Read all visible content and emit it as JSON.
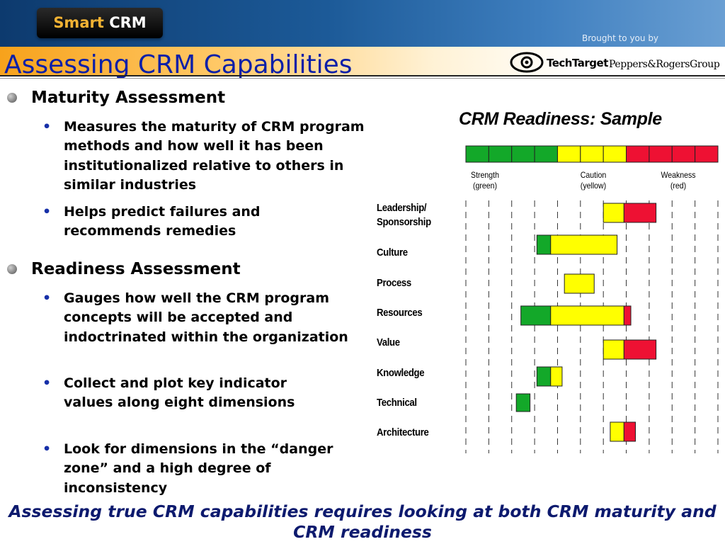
{
  "header": {
    "logo_word1": "Smart",
    "logo_word2": "CRM",
    "brought_to_you_by": "Brought to you by",
    "sponsor1": "TechTarget",
    "sponsor2": "Peppers&RogersGroup"
  },
  "title": "Assessing CRM Capabilities",
  "sections": [
    {
      "heading": "Maturity Assessment",
      "bullets": [
        "Measures the maturity of CRM program methods and how well it has been institutionalized relative to others in similar industries",
        "Helps predict failures and recommends remedies"
      ]
    },
    {
      "heading": "Readiness Assessment",
      "bullets": [
        "Gauges how well the CRM program concepts will be accepted and indoctrinated within the organization",
        "Collect and plot key indicator values along eight dimensions",
        "Look for dimensions in the “danger zone” and a high degree of inconsistency"
      ]
    }
  ],
  "chart_data": {
    "type": "bar",
    "title": "CRM Readiness: Sample",
    "legend": [
      {
        "label": "Strength",
        "sub": "(green)",
        "color": "#13a829"
      },
      {
        "label": "Caution",
        "sub": "(yellow)",
        "color": "#ffff00"
      },
      {
        "label": "Weakness",
        "sub": "(red)",
        "color": "#ee1133"
      }
    ],
    "scale": {
      "green": [
        0,
        4
      ],
      "yellow": [
        4,
        7
      ],
      "red": [
        7,
        11
      ]
    },
    "categories": [
      "Leadership/ Sponsorship",
      "Culture",
      "Process",
      "Resources",
      "Value",
      "Knowledge",
      "Technical",
      "Architecture"
    ],
    "category_lines": [
      [
        "Leadership/",
        "Sponsorship"
      ],
      [
        "Culture"
      ],
      [
        "Process"
      ],
      [
        "Resources"
      ],
      [
        "Value"
      ],
      [
        "Knowledge"
      ],
      [
        "Technical"
      ],
      [
        "Architecture"
      ]
    ],
    "ranges": [
      {
        "segments": [
          {
            "from": 6.0,
            "to": 6.9,
            "color": "yellow"
          },
          {
            "from": 6.9,
            "to": 8.3,
            "color": "red"
          }
        ]
      },
      {
        "segments": [
          {
            "from": 3.1,
            "to": 3.7,
            "color": "green"
          },
          {
            "from": 3.7,
            "to": 6.6,
            "color": "yellow"
          }
        ]
      },
      {
        "segments": [
          {
            "from": 4.3,
            "to": 5.6,
            "color": "yellow"
          }
        ]
      },
      {
        "segments": [
          {
            "from": 2.4,
            "to": 3.7,
            "color": "green"
          },
          {
            "from": 3.7,
            "to": 6.9,
            "color": "yellow"
          },
          {
            "from": 6.9,
            "to": 7.2,
            "color": "red"
          }
        ]
      },
      {
        "segments": [
          {
            "from": 6.0,
            "to": 6.9,
            "color": "yellow"
          },
          {
            "from": 6.9,
            "to": 8.3,
            "color": "red"
          }
        ]
      },
      {
        "segments": [
          {
            "from": 3.1,
            "to": 3.7,
            "color": "green"
          },
          {
            "from": 3.7,
            "to": 4.2,
            "color": "yellow"
          }
        ]
      },
      {
        "segments": [
          {
            "from": 2.2,
            "to": 2.8,
            "color": "green"
          }
        ]
      },
      {
        "segments": [
          {
            "from": 6.3,
            "to": 6.9,
            "color": "yellow"
          },
          {
            "from": 6.9,
            "to": 7.4,
            "color": "red"
          }
        ]
      }
    ],
    "grid_lines": 11,
    "grid": true
  },
  "conclusion": "Assessing true CRM capabilities requires looking at both CRM maturity and CRM readiness"
}
